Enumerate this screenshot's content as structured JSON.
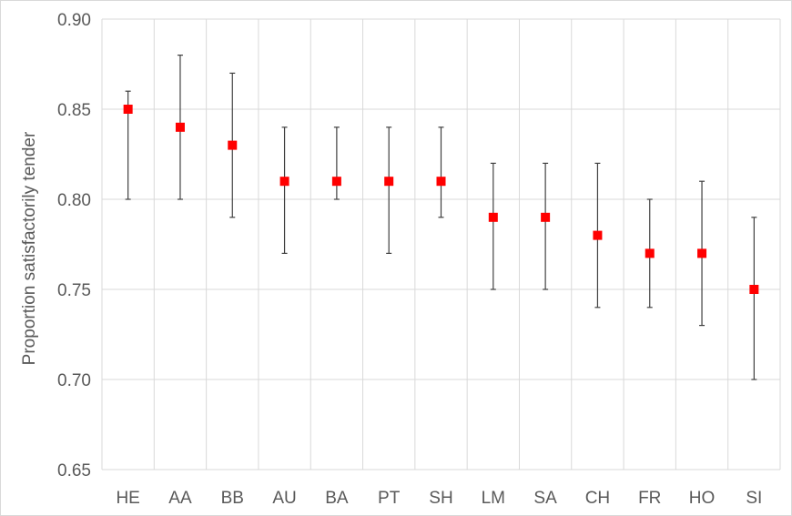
{
  "chart_data": {
    "type": "scatter",
    "title": "",
    "xlabel": "",
    "ylabel": "Proportion satisfactorily tender",
    "categories": [
      "HE",
      "AA",
      "BB",
      "AU",
      "BA",
      "PT",
      "SH",
      "LM",
      "SA",
      "CH",
      "FR",
      "HO",
      "SI"
    ],
    "series": [
      {
        "values": [
          0.85,
          0.84,
          0.83,
          0.81,
          0.81,
          0.81,
          0.81,
          0.79,
          0.79,
          0.78,
          0.77,
          0.77,
          0.75
        ],
        "lower": [
          0.8,
          0.8,
          0.79,
          0.77,
          0.8,
          0.77,
          0.79,
          0.75,
          0.75,
          0.74,
          0.74,
          0.73,
          0.7
        ],
        "upper": [
          0.86,
          0.88,
          0.87,
          0.84,
          0.84,
          0.84,
          0.84,
          0.82,
          0.82,
          0.82,
          0.8,
          0.81,
          0.79
        ],
        "color": "#ff0000"
      }
    ],
    "ylim": [
      0.65,
      0.9
    ],
    "yticks": [
      "0.65",
      "0.70",
      "0.75",
      "0.80",
      "0.85",
      "0.90"
    ],
    "grid": true,
    "legend": "none"
  }
}
